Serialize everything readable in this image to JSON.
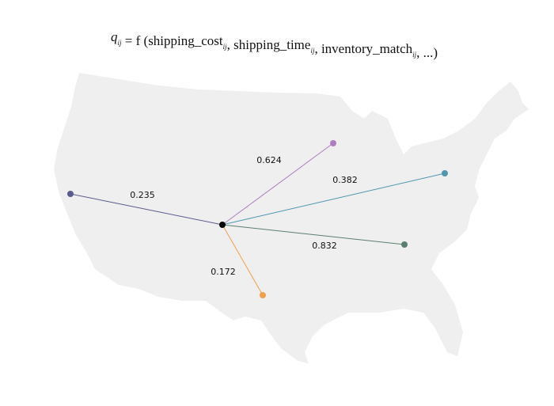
{
  "formula": [
    {
      "text": "q",
      "sub": "ij"
    },
    {
      "text": " = f ("
    },
    {
      "text": "shipping_cost",
      "sub": "ij"
    },
    {
      "text": ", shipping_time",
      "sub": "ij"
    },
    {
      "text": ", inventory_match",
      "sub": "ij"
    },
    {
      "text": ", ...)"
    }
  ],
  "edges": [
    {
      "weight": 0.235
    },
    {
      "weight": 0.624
    },
    {
      "weight": 0.382
    },
    {
      "weight": 0.832
    },
    {
      "weight": 0.172
    }
  ]
}
